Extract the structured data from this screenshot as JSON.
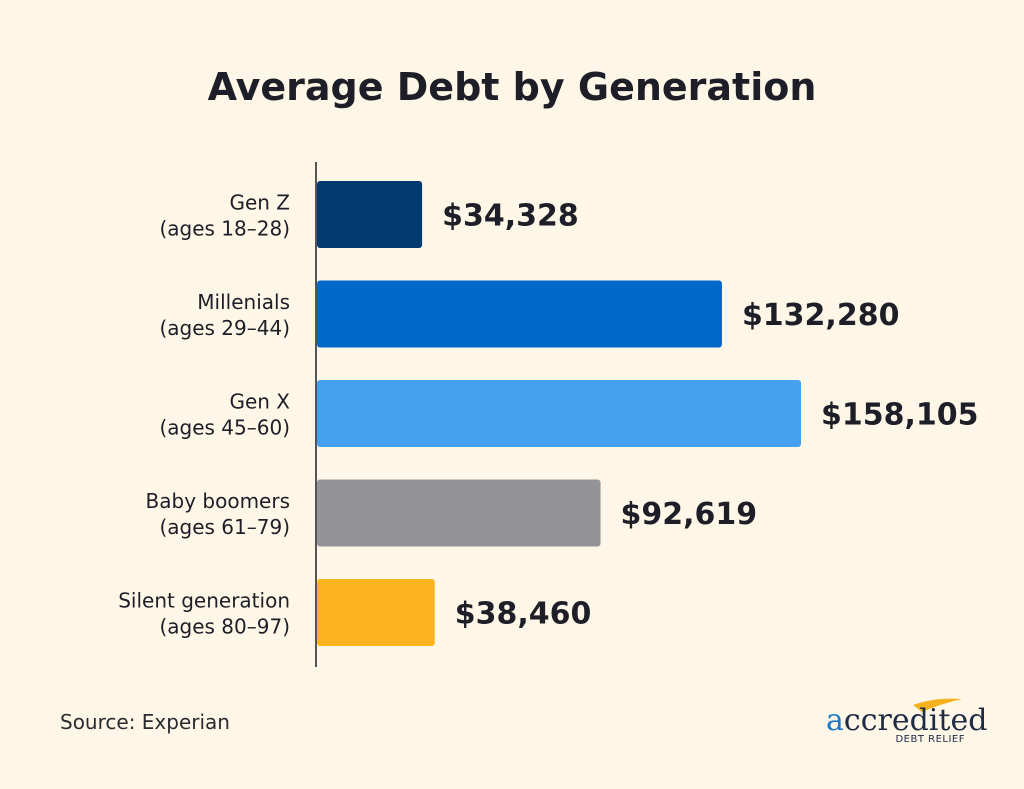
{
  "chart_data": {
    "type": "bar",
    "orientation": "horizontal",
    "title": "Average Debt by Generation",
    "categories": [
      {
        "name": "Gen Z",
        "ages": "(ages 18–28)"
      },
      {
        "name": "Millenials",
        "ages": "(ages 29–44)"
      },
      {
        "name": "Gen X",
        "ages": "(ages 45–60)"
      },
      {
        "name": "Baby boomers",
        "ages": "(ages 61–79)"
      },
      {
        "name": "Silent generation",
        "ages": "(ages 80–97)"
      }
    ],
    "values": [
      34328,
      132280,
      158105,
      92619,
      38460
    ],
    "value_labels": [
      "$34,328",
      "$132,280",
      "$158,105",
      "$92,619",
      "$38,460"
    ],
    "colors": [
      "#033A70",
      "#0068C8",
      "#46A0F0",
      "#949397",
      "#FBB41E"
    ],
    "xlim": [
      0,
      158105
    ],
    "grid": false,
    "legend": "none"
  },
  "source": "Source: Experian",
  "logo": {
    "name": "accredited",
    "tagline": "DEBT RELIEF",
    "accent_color": "#F5B21C",
    "first_letter_color": "#1F78C8",
    "text_color": "#1F2A44"
  }
}
